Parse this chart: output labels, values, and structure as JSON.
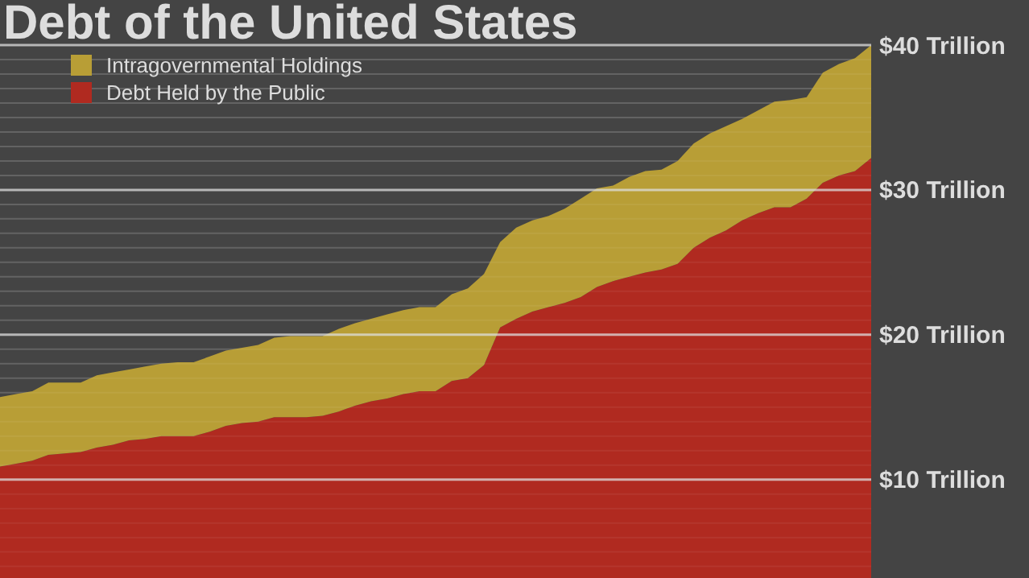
{
  "chart_data": {
    "type": "area",
    "title": "Debt of the United States",
    "stacked": true,
    "categories": [
      null,
      null,
      null,
      null,
      null,
      null,
      null,
      null,
      null,
      null,
      null,
      null,
      null,
      null,
      null,
      null,
      null,
      null,
      null,
      null,
      null,
      null,
      null,
      null,
      null,
      null,
      null,
      null,
      null,
      null,
      null,
      null,
      null,
      null,
      null,
      null,
      null,
      null,
      null,
      null,
      null,
      null,
      null,
      null,
      null,
      null,
      null,
      null,
      null,
      null,
      null,
      null,
      null,
      null,
      null
    ],
    "series": [
      {
        "name": "Debt Held by the Public",
        "color": "#b02a20",
        "values": [
          10.9,
          11.1,
          11.3,
          11.7,
          11.8,
          11.9,
          12.2,
          12.4,
          12.7,
          12.8,
          13.0,
          13.0,
          13.0,
          13.3,
          13.7,
          13.9,
          14.0,
          14.3,
          14.3,
          14.3,
          14.4,
          14.7,
          15.1,
          15.4,
          15.6,
          15.9,
          16.1,
          16.1,
          16.8,
          17.0,
          17.9,
          20.5,
          21.1,
          21.6,
          21.9,
          22.2,
          22.6,
          23.3,
          23.7,
          24.0,
          24.3,
          24.5,
          24.9,
          26.0,
          26.7,
          27.2,
          27.9,
          28.4,
          28.8,
          28.8,
          29.4,
          30.5,
          31.0,
          31.3,
          32.2
        ]
      },
      {
        "name": "Intragovernmental Holdings",
        "color": "#b89e36",
        "values": [
          4.8,
          4.8,
          4.8,
          5.0,
          4.9,
          4.8,
          5.0,
          5.0,
          4.9,
          5.0,
          5.0,
          5.1,
          5.1,
          5.2,
          5.2,
          5.2,
          5.3,
          5.5,
          5.6,
          5.6,
          5.5,
          5.7,
          5.7,
          5.7,
          5.8,
          5.8,
          5.8,
          5.8,
          6.0,
          6.2,
          6.3,
          5.9,
          6.3,
          6.3,
          6.3,
          6.5,
          6.8,
          6.8,
          6.6,
          6.9,
          7.0,
          6.9,
          7.1,
          7.2,
          7.2,
          7.2,
          7.0,
          7.1,
          7.3,
          7.4,
          7.0,
          7.6,
          7.7,
          7.8,
          7.8
        ]
      }
    ],
    "ylim": [
      3.2,
      40
    ],
    "yticks": [
      {
        "value": 4,
        "label": null
      },
      {
        "value": 5,
        "label": null
      },
      {
        "value": 6,
        "label": null
      },
      {
        "value": 7,
        "label": null
      },
      {
        "value": 8,
        "label": null
      },
      {
        "value": 9,
        "label": null
      },
      {
        "value": 10,
        "label": "$10 Trillion"
      },
      {
        "value": 11,
        "label": null
      },
      {
        "value": 12,
        "label": null
      },
      {
        "value": 13,
        "label": null
      },
      {
        "value": 14,
        "label": null
      },
      {
        "value": 15,
        "label": null
      },
      {
        "value": 16,
        "label": null
      },
      {
        "value": 17,
        "label": null
      },
      {
        "value": 18,
        "label": null
      },
      {
        "value": 19,
        "label": null
      },
      {
        "value": 20,
        "label": "$20 Trillion"
      },
      {
        "value": 21,
        "label": null
      },
      {
        "value": 22,
        "label": null
      },
      {
        "value": 23,
        "label": null
      },
      {
        "value": 24,
        "label": null
      },
      {
        "value": 25,
        "label": null
      },
      {
        "value": 26,
        "label": null
      },
      {
        "value": 27,
        "label": null
      },
      {
        "value": 28,
        "label": null
      },
      {
        "value": 29,
        "label": null
      },
      {
        "value": 30,
        "label": "$30 Trillion"
      },
      {
        "value": 31,
        "label": null
      },
      {
        "value": 32,
        "label": null
      },
      {
        "value": 33,
        "label": null
      },
      {
        "value": 34,
        "label": null
      },
      {
        "value": 35,
        "label": null
      },
      {
        "value": 36,
        "label": null
      },
      {
        "value": 37,
        "label": null
      },
      {
        "value": 38,
        "label": null
      },
      {
        "value": 39,
        "label": null
      },
      {
        "value": 40,
        "label": "$40 Trillion"
      }
    ],
    "grid": true,
    "legend": "top left"
  }
}
